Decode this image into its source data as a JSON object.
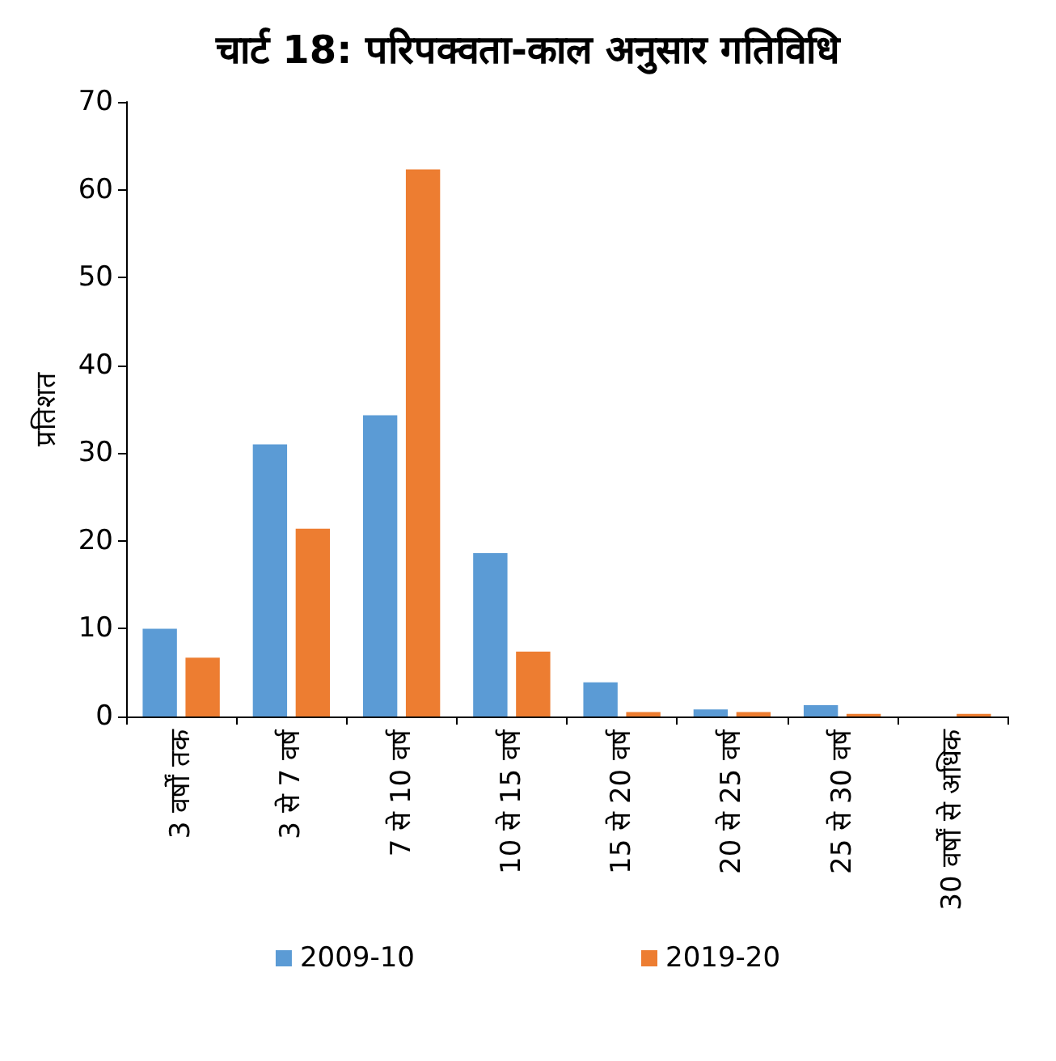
{
  "chart_data": {
    "type": "bar",
    "title": "चार्ट 18: परिपक्वता-काल अनुसार गतिविधि",
    "ylabel": "प्रतिशत",
    "categories": [
      "3 वर्षों तक",
      "3 से 7 वर्ष",
      "7 से 10 वर्ष",
      "10 से 15 वर्ष",
      "15 से 20 वर्ष",
      "20 से 25 वर्ष",
      "25 से 30 वर्ष",
      "30 वर्षों से अधिक"
    ],
    "series": [
      {
        "name": "2009-10",
        "color": "#5b9bd5",
        "values": [
          10.0,
          31.0,
          34.3,
          18.6,
          3.9,
          0.8,
          1.3,
          null
        ]
      },
      {
        "name": "2019-20",
        "color": "#ed7d31",
        "values": [
          6.7,
          21.4,
          62.3,
          7.4,
          0.5,
          0.5,
          0.3,
          0.3
        ]
      }
    ],
    "ylim": [
      0,
      70
    ],
    "yticks": [
      0,
      10,
      20,
      30,
      40,
      50,
      60,
      70
    ],
    "grid": false,
    "legend": "bottom"
  }
}
